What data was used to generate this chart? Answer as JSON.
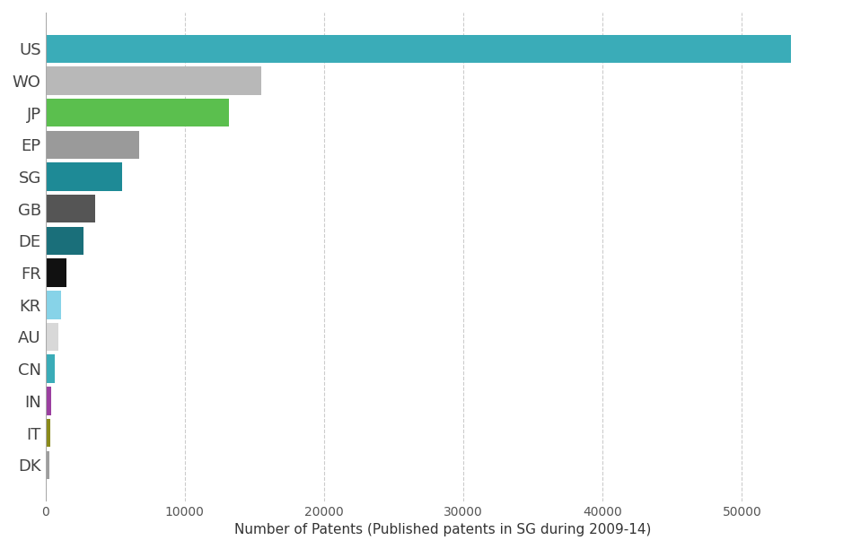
{
  "categories": [
    "US",
    "WO",
    "JP",
    "EP",
    "SG",
    "GB",
    "DE",
    "FR",
    "KR",
    "AU",
    "CN",
    "IN",
    "IT",
    "DK"
  ],
  "values": [
    53500,
    15500,
    13200,
    6700,
    5500,
    3600,
    2700,
    1500,
    1100,
    900,
    700,
    380,
    320,
    260
  ],
  "colors": [
    "#3aacb8",
    "#b8b8b8",
    "#5bbf4e",
    "#9a9a9a",
    "#1e8a96",
    "#555555",
    "#1a6f7a",
    "#111111",
    "#87d3e8",
    "#d8d8d8",
    "#3aacb8",
    "#9b3fa0",
    "#8a8a1a",
    "#9e9e9e"
  ],
  "xlabel": "Number of Patents (Published patents in SG during 2009-14)",
  "bg_color": "#ffffff",
  "xticks": [
    0,
    10000,
    20000,
    30000,
    40000,
    50000
  ],
  "xlim": [
    0,
    57000
  ],
  "xlabel_fontsize": 11,
  "bar_height": 0.88,
  "ytick_fontsize": 13,
  "xtick_fontsize": 10
}
